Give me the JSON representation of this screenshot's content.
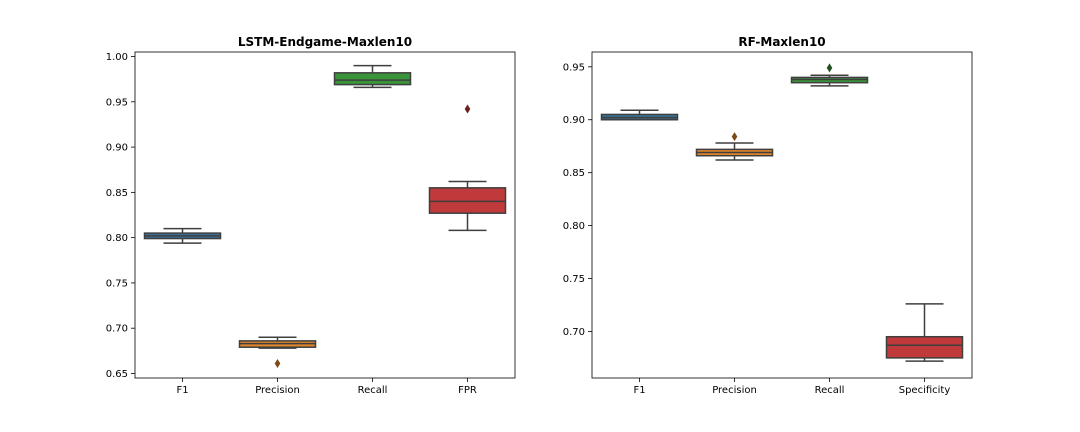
{
  "chart_data": [
    {
      "type": "box",
      "title": "LSTM-Endgame-Maxlen10",
      "categories": [
        "F1",
        "Precision",
        "Recall",
        "FPR"
      ],
      "ylim": [
        0.645,
        1.005
      ],
      "yticks": [
        "0.65",
        "0.70",
        "0.75",
        "0.80",
        "0.85",
        "0.90",
        "0.95",
        "1.00"
      ],
      "grid": false,
      "boxes": [
        {
          "category": "F1",
          "color": "#3a6f96",
          "whisker_low": 0.794,
          "q1": 0.799,
          "median": 0.802,
          "q3": 0.805,
          "whisker_high": 0.81,
          "outliers": []
        },
        {
          "category": "Precision",
          "color": "#e0862a",
          "whisker_low": 0.678,
          "q1": 0.679,
          "median": 0.683,
          "q3": 0.686,
          "whisker_high": 0.69,
          "outliers": [
            0.661
          ]
        },
        {
          "category": "Recall",
          "color": "#3a943a",
          "whisker_low": 0.966,
          "q1": 0.969,
          "median": 0.974,
          "q3": 0.982,
          "whisker_high": 0.99,
          "outliers": []
        },
        {
          "category": "FPR",
          "color": "#c03a3b",
          "whisker_low": 0.808,
          "q1": 0.827,
          "median": 0.84,
          "q3": 0.855,
          "whisker_high": 0.862,
          "outliers": [
            0.942
          ]
        }
      ]
    },
    {
      "type": "box",
      "title": "RF-Maxlen10",
      "categories": [
        "F1",
        "Precision",
        "Recall",
        "Specificity"
      ],
      "ylim": [
        0.656,
        0.964
      ],
      "yticks": [
        "0.70",
        "0.75",
        "0.80",
        "0.85",
        "0.90",
        "0.95"
      ],
      "grid": false,
      "boxes": [
        {
          "category": "F1",
          "color": "#3a6f96",
          "whisker_low": 0.9,
          "q1": 0.9,
          "median": 0.902,
          "q3": 0.905,
          "whisker_high": 0.909,
          "outliers": []
        },
        {
          "category": "Precision",
          "color": "#e0862a",
          "whisker_low": 0.862,
          "q1": 0.866,
          "median": 0.869,
          "q3": 0.872,
          "whisker_high": 0.878,
          "outliers": [
            0.884
          ]
        },
        {
          "category": "Recall",
          "color": "#3a943a",
          "whisker_low": 0.932,
          "q1": 0.935,
          "median": 0.938,
          "q3": 0.94,
          "whisker_high": 0.942,
          "outliers": [
            0.949
          ]
        },
        {
          "category": "Specificity",
          "color": "#c03a3b",
          "whisker_low": 0.672,
          "q1": 0.675,
          "median": 0.687,
          "q3": 0.695,
          "whisker_high": 0.726,
          "outliers": []
        }
      ]
    }
  ]
}
